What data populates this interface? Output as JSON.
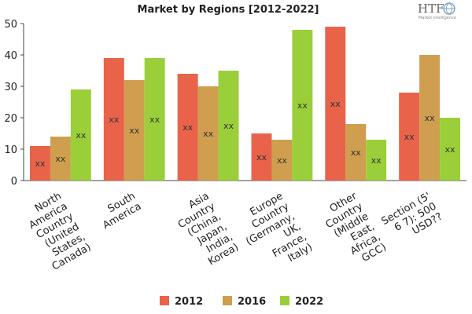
{
  "chart_data": {
    "type": "bar",
    "title": "Market by Regions [2012-2022]",
    "logo": {
      "main": "HTF",
      "sub": "Market Intelligence"
    },
    "categories": [
      [
        "North",
        "America",
        "Country",
        "(United",
        "States,",
        "Canada)"
      ],
      [
        "South",
        "America"
      ],
      [
        "Asia",
        "Country",
        "(China,",
        "Japan,",
        "India,",
        "Korea)"
      ],
      [
        "Europe",
        "Country",
        "(Germany,",
        "UK,",
        "France,",
        "Italy)"
      ],
      [
        "Other",
        "Country",
        "(Middle",
        "East,",
        "Africa,",
        "GCC)"
      ],
      [
        "Section (5'",
        "6 7): 500",
        "USD??"
      ]
    ],
    "series": [
      {
        "name": "2012",
        "color": "#e8634a",
        "values": [
          11,
          39,
          34,
          15,
          49,
          28
        ]
      },
      {
        "name": "2016",
        "color": "#cf9e4f",
        "values": [
          14,
          32,
          30,
          13,
          18,
          40
        ]
      },
      {
        "name": "2022",
        "color": "#9bcf3a",
        "values": [
          29,
          39,
          35,
          48,
          13,
          20
        ]
      }
    ],
    "data_label": "xx",
    "ylim": [
      0,
      50
    ],
    "yticks": [
      0,
      10,
      20,
      30,
      40,
      50
    ],
    "grid": false,
    "legend_position": "bottom",
    "xlabel": "",
    "ylabel": ""
  }
}
